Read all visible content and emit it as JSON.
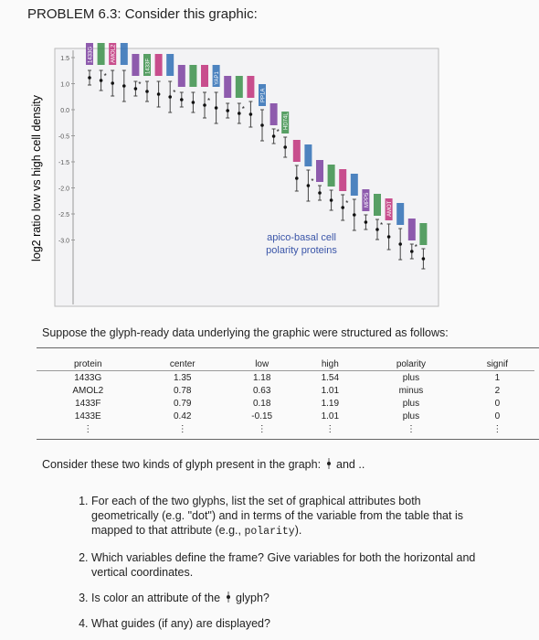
{
  "header": {
    "title": "PROBLEM 6.3: Consider this graphic:"
  },
  "graphic": {
    "y_axis_label": "log2 ratio low vs high cell density",
    "y_tick_labels": [
      "1.5",
      "1.0",
      "0.0",
      "-0.5",
      "-1.5",
      "-2.0",
      "-2.5",
      "-3.0"
    ],
    "glyph_labels": [
      "1433G",
      "AMOL2",
      "1433F",
      "YAP1",
      "PP1A",
      "HD74L",
      "AMOT",
      "MPP5"
    ],
    "annotation": [
      "apico-basal cell",
      "polarity proteins"
    ]
  },
  "table_intro": "Suppose the glyph-ready data underlying the graphic were structured as follows:",
  "table": {
    "header": [
      "protein",
      "center",
      "low",
      "high",
      "polarity",
      "signif"
    ],
    "rows": [
      [
        "1433G",
        "1.35",
        "1.18",
        "1.54",
        "plus",
        "1"
      ],
      [
        "AMOL2",
        "0.78",
        "0.63",
        "1.01",
        "minus",
        "2"
      ],
      [
        "1433F",
        "0.79",
        "0.18",
        "1.19",
        "plus",
        "0"
      ],
      [
        "1433E",
        "0.42",
        "-0.15",
        "1.01",
        "plus",
        "0"
      ],
      [
        "⋮",
        "⋮",
        "⋮",
        "⋮",
        "⋮",
        "⋮"
      ]
    ]
  },
  "glyph_prompt": [
    "Consider these two kinds of glyph present in the graph:",
    "and .."
  ],
  "questions": [
    [
      "For each of the two glyphs, list the set of graphical attributes both geometrically (e.g. \"dot\") and in terms of the variable from the table that is mapped to that attribute (e.g., ",
      "polarity",
      ")."
    ],
    [
      "Which variables define the frame? Give variables for both the horizontal and vertical coordinates."
    ],
    [
      "Is color an attribute of the",
      "glyph?"
    ],
    [
      "What guides (if any) are displayed?"
    ]
  ]
}
